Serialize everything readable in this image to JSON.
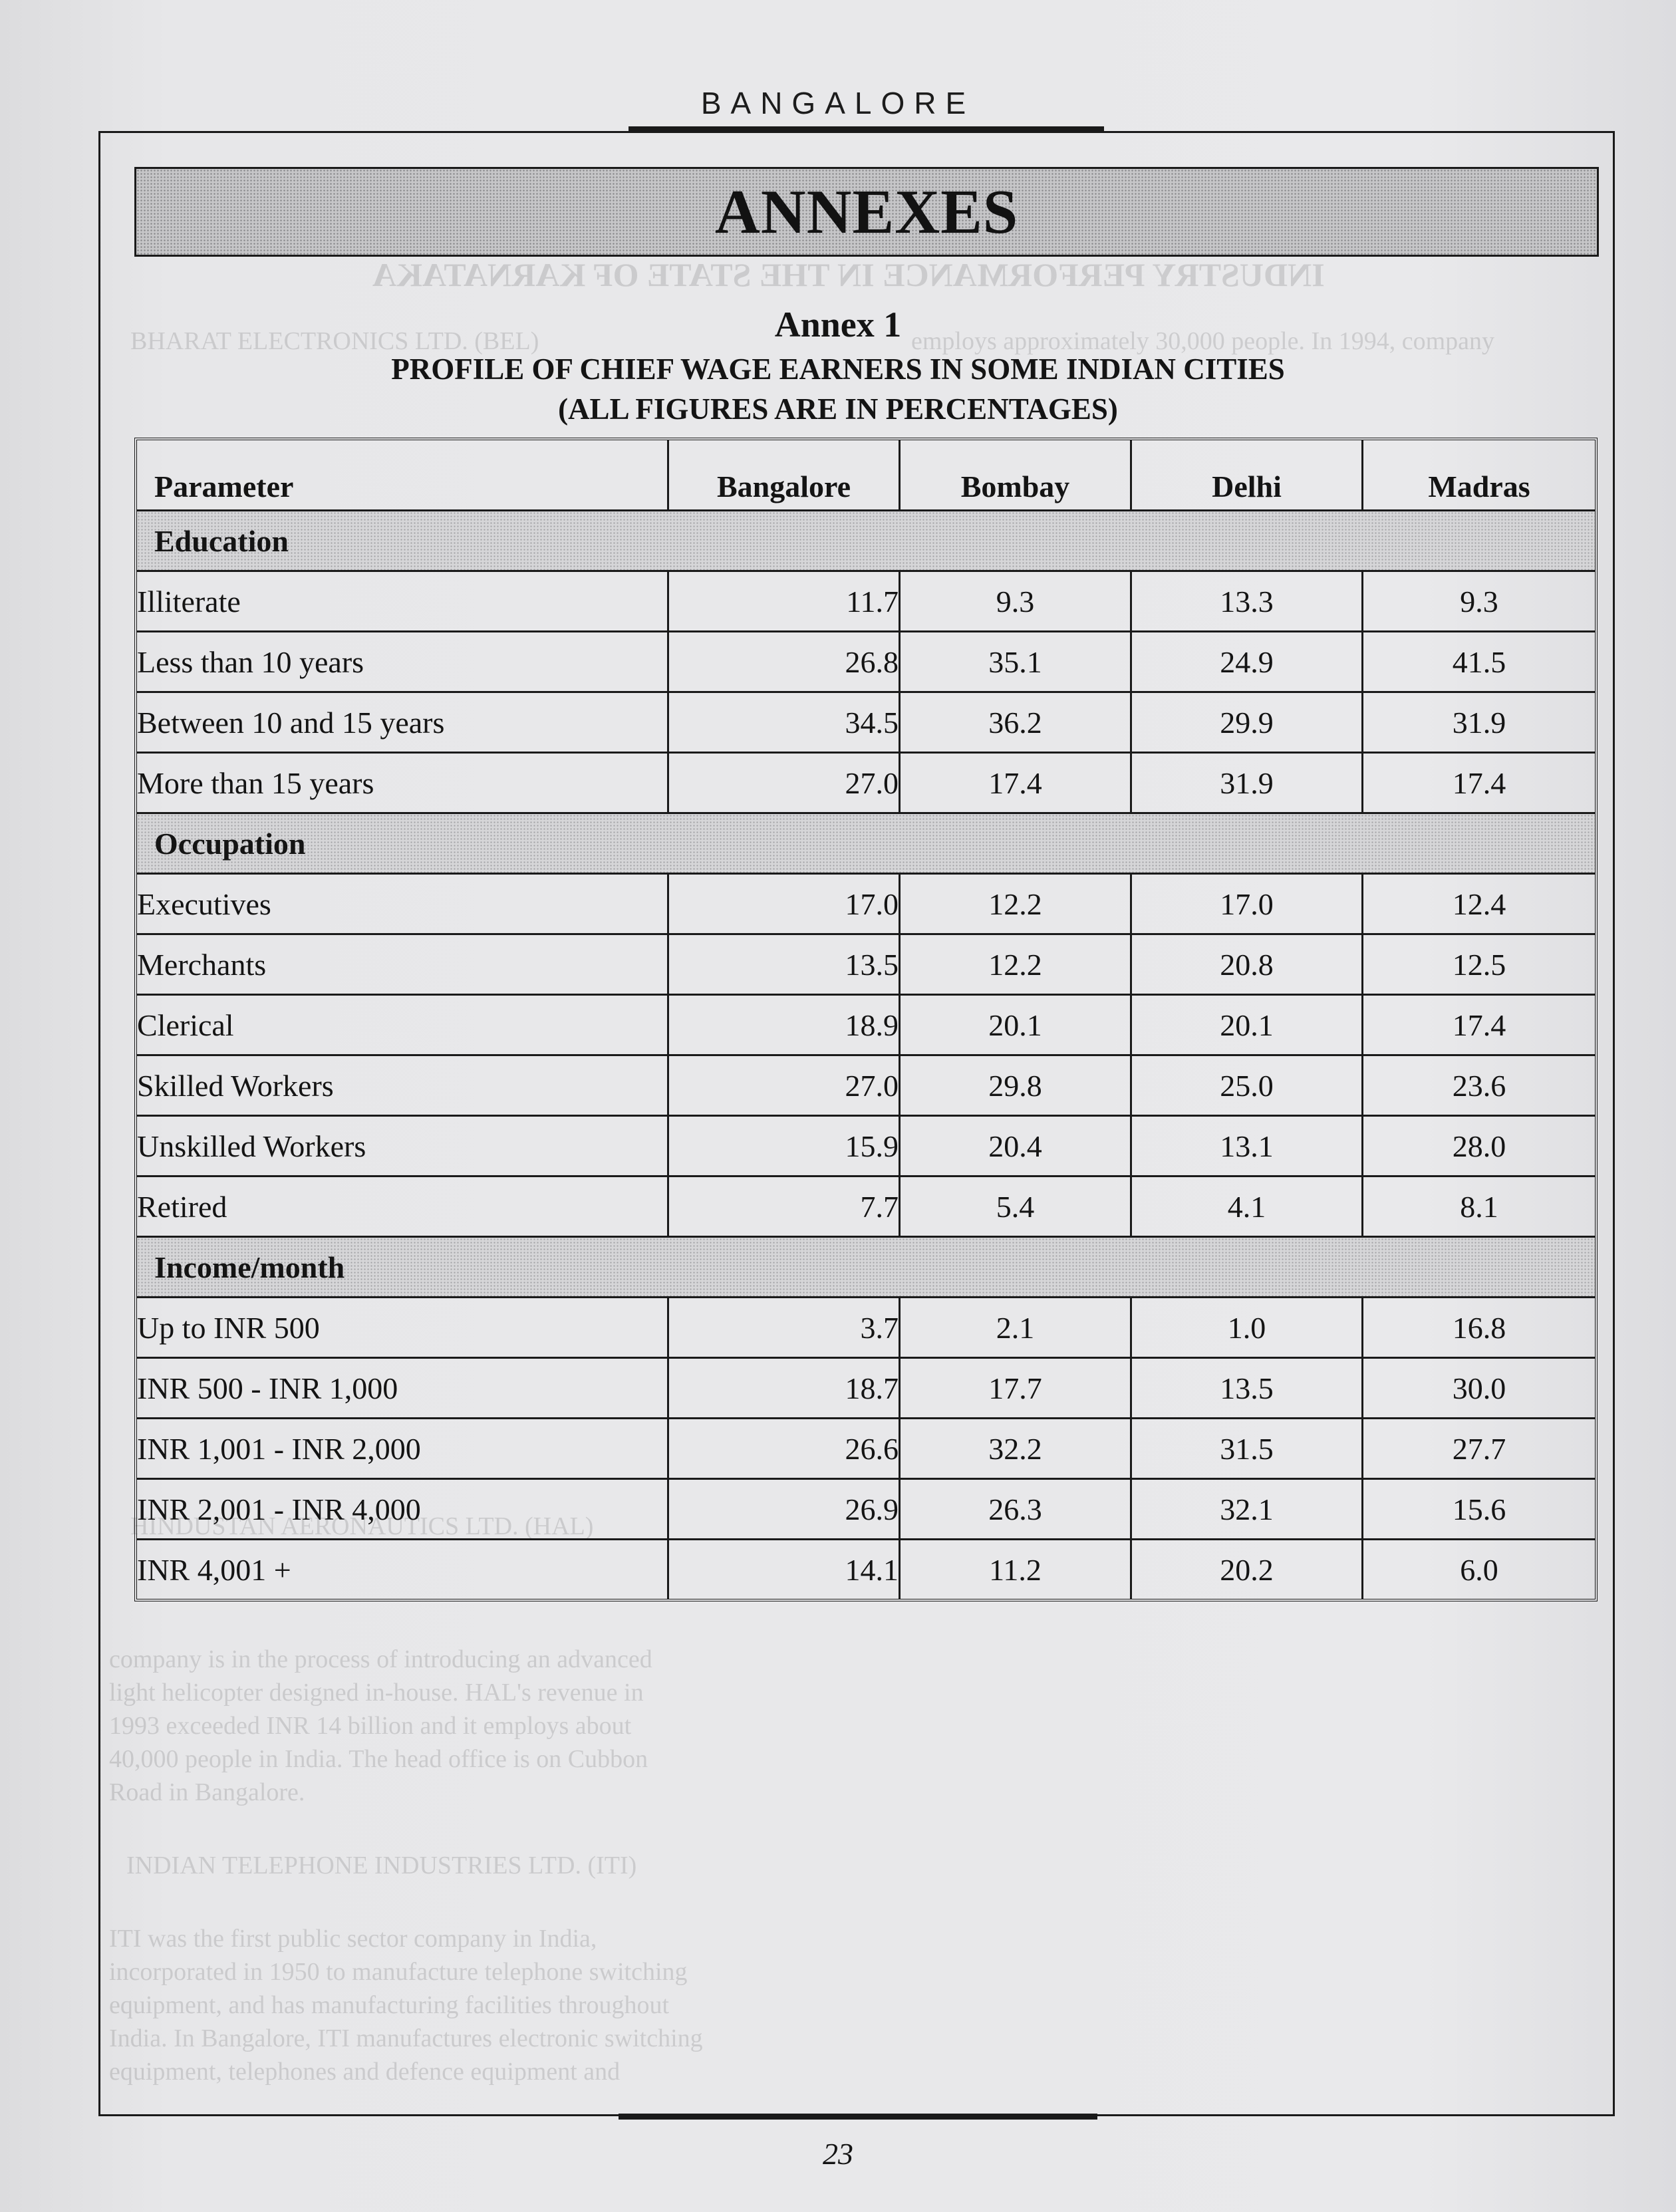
{
  "running_head": "BANGALORE",
  "banner_title": "ANNEXES",
  "annex": {
    "title": "Annex 1",
    "subtitle_line1": "PROFILE OF CHIEF WAGE EARNERS IN SOME INDIAN CITIES",
    "subtitle_line2": "(ALL FIGURES ARE IN PERCENTAGES)"
  },
  "table": {
    "headers": {
      "parameter": "Parameter",
      "bangalore": "Bangalore",
      "bombay": "Bombay",
      "delhi": "Delhi",
      "madras": "Madras"
    },
    "groups": [
      {
        "name": "Education",
        "rows": [
          {
            "label": "Illiterate",
            "bangalore": "11.7",
            "bombay": "9.3",
            "delhi": "13.3",
            "madras": "9.3"
          },
          {
            "label": "Less than 10 years",
            "bangalore": "26.8",
            "bombay": "35.1",
            "delhi": "24.9",
            "madras": "41.5"
          },
          {
            "label": "Between 10 and 15 years",
            "bangalore": "34.5",
            "bombay": "36.2",
            "delhi": "29.9",
            "madras": "31.9"
          },
          {
            "label": "More than 15 years",
            "bangalore": "27.0",
            "bombay": "17.4",
            "delhi": "31.9",
            "madras": "17.4"
          }
        ]
      },
      {
        "name": "Occupation",
        "rows": [
          {
            "label": "Executives",
            "bangalore": "17.0",
            "bombay": "12.2",
            "delhi": "17.0",
            "madras": "12.4"
          },
          {
            "label": "Merchants",
            "bangalore": "13.5",
            "bombay": "12.2",
            "delhi": "20.8",
            "madras": "12.5"
          },
          {
            "label": "Clerical",
            "bangalore": "18.9",
            "bombay": "20.1",
            "delhi": "20.1",
            "madras": "17.4"
          },
          {
            "label": "Skilled Workers",
            "bangalore": "27.0",
            "bombay": "29.8",
            "delhi": "25.0",
            "madras": "23.6"
          },
          {
            "label": "Unskilled Workers",
            "bangalore": "15.9",
            "bombay": "20.4",
            "delhi": "13.1",
            "madras": "28.0"
          },
          {
            "label": "Retired",
            "bangalore": "7.7",
            "bombay": "5.4",
            "delhi": "4.1",
            "madras": "8.1"
          }
        ]
      },
      {
        "name": "Income/month",
        "rows": [
          {
            "label": "Up to INR 500",
            "bangalore": "3.7",
            "bombay": "2.1",
            "delhi": "1.0",
            "madras": "16.8"
          },
          {
            "label": "INR 500 - INR 1,000",
            "bangalore": "18.7",
            "bombay": "17.7",
            "delhi": "13.5",
            "madras": "30.0"
          },
          {
            "label": "INR 1,001 - INR 2,000",
            "bangalore": "26.6",
            "bombay": "32.2",
            "delhi": "31.5",
            "madras": "27.7"
          },
          {
            "label": "INR 2,001 - INR 4,000",
            "bangalore": "26.9",
            "bombay": "26.3",
            "delhi": "32.1",
            "madras": "15.6"
          },
          {
            "label": "INR 4,001 +",
            "bangalore": "14.1",
            "bombay": "11.2",
            "delhi": "20.2",
            "madras": "6.0"
          }
        ]
      }
    ]
  },
  "bleed_through": {
    "mirrored_heading": "INDUSTRY PERFORMANCE IN THE STATE OF KARNATAKA",
    "lines": [
      "BHARAT ELECTRONICS LTD. (BEL)",
      "employs approximately 30,000 people. In 1994, company",
      "HINDUSTAN AERONAUTICS LTD. (HAL)",
      "company is in the process of introducing an advanced",
      "light helicopter designed in-house. HAL's revenue in",
      "1993 exceeded INR 14 billion and it employs about",
      "40,000 people in India. The head office is on Cubbon",
      "Road in Bangalore.",
      "INDIAN TELEPHONE INDUSTRIES LTD. (ITI)",
      "ITI was the first public sector company in India,",
      "incorporated in 1950 to manufacture telephone switching",
      "equipment, and has manufacturing facilities throughout",
      "India. In Bangalore, ITI manufactures electronic switching",
      "equipment, telephones and defence equipment and"
    ]
  },
  "page_number": "23"
}
